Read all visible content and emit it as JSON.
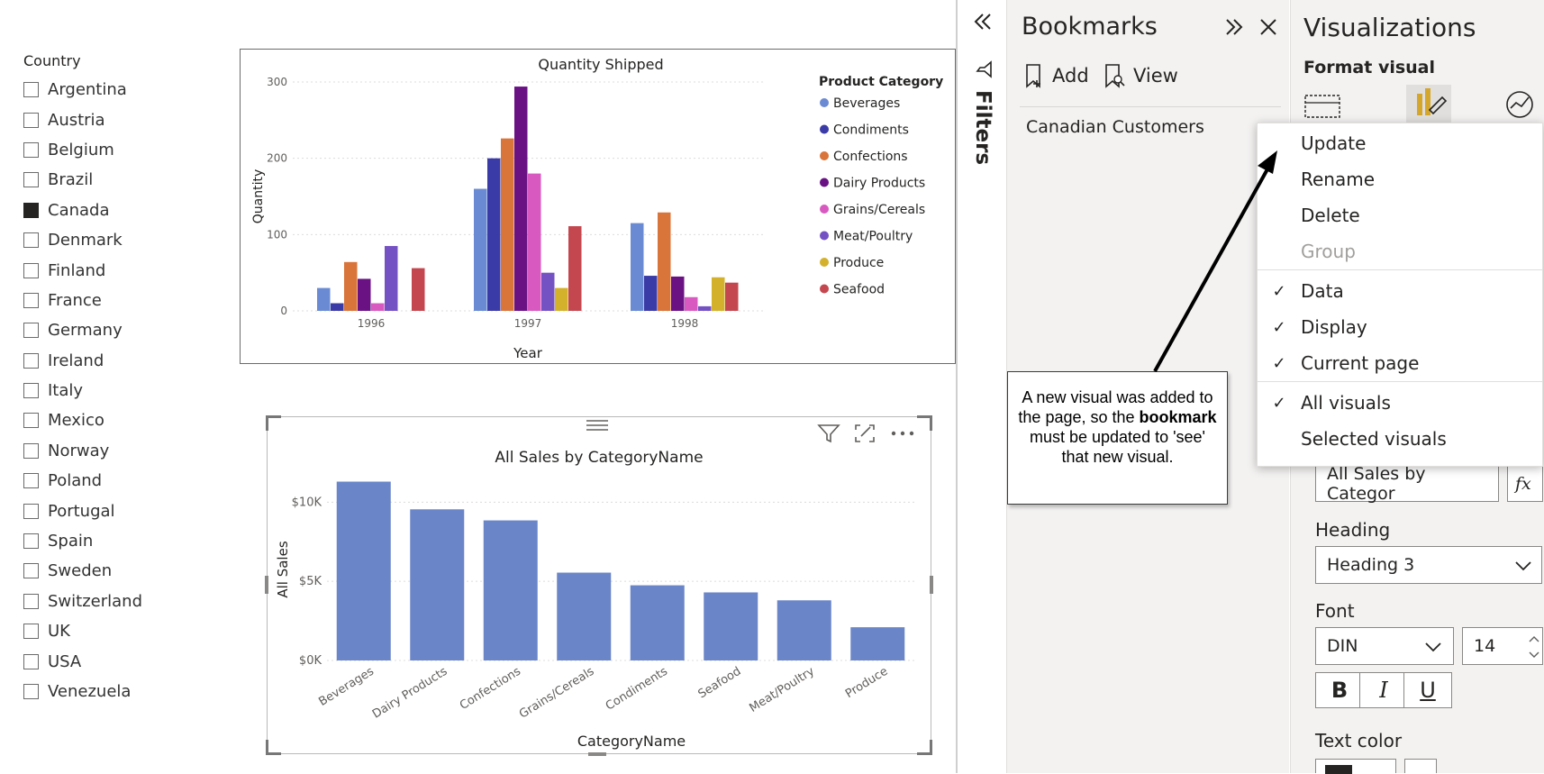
{
  "slicer": {
    "title": "Country",
    "items": [
      {
        "label": "Argentina",
        "checked": false
      },
      {
        "label": "Austria",
        "checked": false
      },
      {
        "label": "Belgium",
        "checked": false
      },
      {
        "label": "Brazil",
        "checked": false
      },
      {
        "label": "Canada",
        "checked": true
      },
      {
        "label": "Denmark",
        "checked": false
      },
      {
        "label": "Finland",
        "checked": false
      },
      {
        "label": "France",
        "checked": false
      },
      {
        "label": "Germany",
        "checked": false
      },
      {
        "label": "Ireland",
        "checked": false
      },
      {
        "label": "Italy",
        "checked": false
      },
      {
        "label": "Mexico",
        "checked": false
      },
      {
        "label": "Norway",
        "checked": false
      },
      {
        "label": "Poland",
        "checked": false
      },
      {
        "label": "Portugal",
        "checked": false
      },
      {
        "label": "Spain",
        "checked": false
      },
      {
        "label": "Sweden",
        "checked": false
      },
      {
        "label": "Switzerland",
        "checked": false
      },
      {
        "label": "UK",
        "checked": false
      },
      {
        "label": "USA",
        "checked": false
      },
      {
        "label": "Venezuela",
        "checked": false
      }
    ]
  },
  "chart_data": [
    {
      "type": "bar",
      "title": "Quantity Shipped",
      "xlabel": "Year",
      "ylabel": "Quantity",
      "ylim": [
        0,
        300
      ],
      "yticks": [
        "0",
        "100",
        "200",
        "300"
      ],
      "grid": true,
      "legend_title": "Product Category",
      "legend_position": "right",
      "categories": [
        "1996",
        "1997",
        "1998"
      ],
      "series": [
        {
          "name": "Beverages",
          "color": "#6a8bd3",
          "values": [
            30,
            160,
            115
          ]
        },
        {
          "name": "Condiments",
          "color": "#3b3ba8",
          "values": [
            10,
            200,
            46
          ]
        },
        {
          "name": "Confections",
          "color": "#d9743a",
          "values": [
            64,
            226,
            129
          ]
        },
        {
          "name": "Dairy Products",
          "color": "#6a1184",
          "values": [
            42,
            294,
            45
          ]
        },
        {
          "name": "Grains/Cereals",
          "color": "#d85ac0",
          "values": [
            10,
            180,
            18
          ]
        },
        {
          "name": "Meat/Poultry",
          "color": "#7552c4",
          "values": [
            85,
            50,
            6
          ]
        },
        {
          "name": "Produce",
          "color": "#d4b12c",
          "values": [
            0,
            30,
            44
          ]
        },
        {
          "name": "Seafood",
          "color": "#c4474f",
          "values": [
            56,
            111,
            37
          ]
        }
      ]
    },
    {
      "type": "bar",
      "title": "All Sales by CategoryName",
      "xlabel": "CategoryName",
      "ylabel": "All Sales",
      "ylim": [
        0,
        11500
      ],
      "yticks": [
        {
          "value": 0,
          "label": "$0K"
        },
        {
          "value": 5000,
          "label": "$5K"
        },
        {
          "value": 10000,
          "label": "$10K"
        }
      ],
      "grid": true,
      "color": "#6a86c8",
      "categories": [
        "Beverages",
        "Dairy Products",
        "Confections",
        "Grains/Cereals",
        "Condiments",
        "Seafood",
        "Meat/Poultry",
        "Produce"
      ],
      "values": [
        11300,
        9550,
        8850,
        5550,
        4750,
        4300,
        3800,
        2100
      ]
    }
  ],
  "filters": {
    "label": "Filters"
  },
  "bookmarks": {
    "title": "Bookmarks",
    "add_label": "Add",
    "view_label": "View",
    "items": [
      "Canadian Customers"
    ]
  },
  "context_menu": {
    "items": [
      {
        "label": "Update",
        "checked": false,
        "disabled": false
      },
      {
        "label": "Rename",
        "checked": false,
        "disabled": false
      },
      {
        "label": "Delete",
        "checked": false,
        "disabled": false
      },
      {
        "label": "Group",
        "checked": false,
        "disabled": true
      },
      {
        "label": "Data",
        "checked": true,
        "disabled": false
      },
      {
        "label": "Display",
        "checked": true,
        "disabled": false
      },
      {
        "label": "Current page",
        "checked": true,
        "disabled": false
      },
      {
        "label": "All visuals",
        "checked": true,
        "disabled": false
      },
      {
        "label": "Selected visuals",
        "checked": false,
        "disabled": false
      }
    ]
  },
  "callout": {
    "text_before": "A new visual was added to the page, so the ",
    "text_bold": "bookmark",
    "text_after": " must be updated to 'see' that new visual."
  },
  "visualizations": {
    "title": "Visualizations",
    "subtitle": "Format visual",
    "title_text_value": "All Sales by Categor",
    "fx_label": "fx",
    "heading_label": "Heading",
    "heading_value": "Heading 3",
    "font_label": "Font",
    "font_value": "DIN",
    "font_size": "14",
    "bold_label": "B",
    "italic_label": "I",
    "underline_label": "U",
    "text_color_label": "Text color"
  }
}
